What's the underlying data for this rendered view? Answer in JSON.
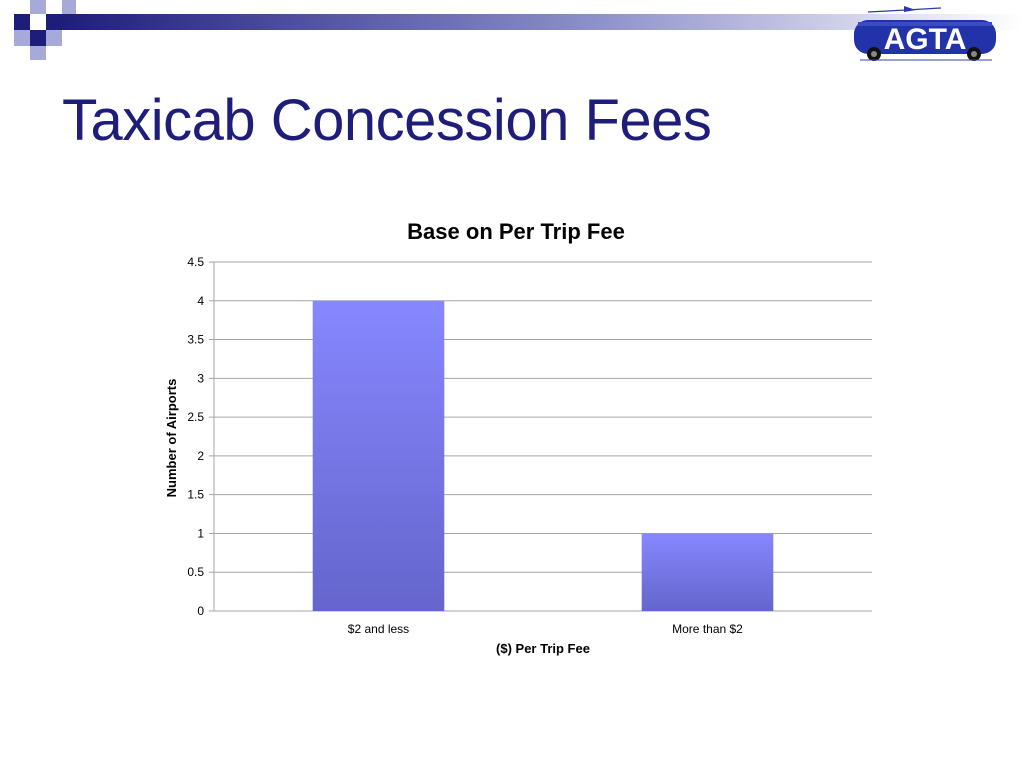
{
  "slide": {
    "title": "Taxicab Concession Fees",
    "logo_text": "AGTA"
  },
  "colors": {
    "title": "#1f1d7a",
    "header_navy": "#1f1d7a",
    "header_light": "#a7a9d8",
    "bar_top": "#8787ff",
    "bar_bottom": "#6565cc",
    "gridline": "#a6a6a6"
  },
  "chart_data": {
    "type": "bar",
    "title": "Base on Per Trip Fee",
    "xlabel": "($) Per Trip Fee",
    "ylabel": "Number of Airports",
    "categories": [
      "$2 and less",
      "More than $2"
    ],
    "values": [
      4,
      1
    ],
    "ylim": [
      0,
      4.5
    ],
    "yticks": [
      "0",
      "0.5",
      "1",
      "1.5",
      "2",
      "2.5",
      "3",
      "3.5",
      "4",
      "4.5"
    ],
    "grid": true,
    "legend": "none"
  }
}
